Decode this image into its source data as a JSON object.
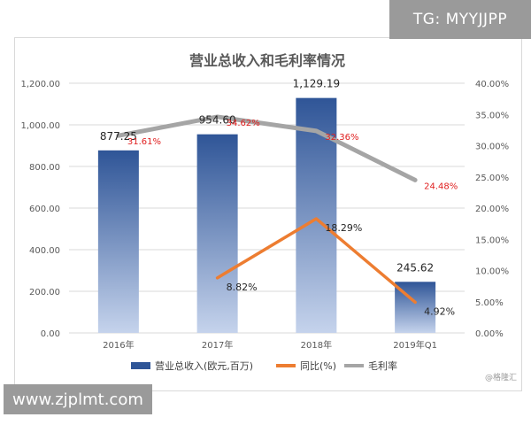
{
  "watermarks": {
    "top": "TG: MYYJJPP",
    "bottom": "www.zjplmt.com",
    "credit": "@格隆汇"
  },
  "chart_data": {
    "type": "bar",
    "title": "营业总收入和毛利率情况",
    "categories": [
      "2016年",
      "2017年",
      "2018年",
      "2019年Q1"
    ],
    "y_left": {
      "min": 0,
      "max": 1200,
      "step": 200,
      "tick_labels": [
        "0.00",
        "200.00",
        "400.00",
        "600.00",
        "800.00",
        "1,000.00",
        "1,200.00"
      ]
    },
    "y_right": {
      "min": 0,
      "max": 40,
      "step": 5,
      "tick_labels": [
        "0.00%",
        "5.00%",
        "10.00%",
        "15.00%",
        "20.00%",
        "25.00%",
        "30.00%",
        "35.00%",
        "40.00%"
      ]
    },
    "series": [
      {
        "name": "营业总收入(欧元,百万)",
        "type": "bar",
        "axis": "left",
        "values": [
          877.25,
          954.6,
          1129.19,
          245.62
        ],
        "labels": [
          "877.25",
          "954.60",
          "1,129.19",
          "245.62"
        ]
      },
      {
        "name": "同比(%)",
        "type": "line",
        "axis": "right",
        "color": "#ed7d31",
        "values": [
          null,
          8.82,
          18.29,
          4.92
        ],
        "labels": [
          "",
          "8.82%",
          "18.29%",
          "4.92%"
        ]
      },
      {
        "name": "毛利率",
        "type": "line",
        "axis": "right",
        "color": "#a5a5a5",
        "values": [
          31.61,
          34.62,
          32.36,
          24.48
        ],
        "labels": [
          "31.61%",
          "34.62%",
          "32.36%",
          "24.48%"
        ]
      }
    ],
    "legend_position": "bottom",
    "grid": true,
    "colors": {
      "bar_top": "#2f5597",
      "bar_bottom": "#c5d3ec",
      "gm_label": "#e02020",
      "gridline": "#d9d9d9"
    }
  }
}
